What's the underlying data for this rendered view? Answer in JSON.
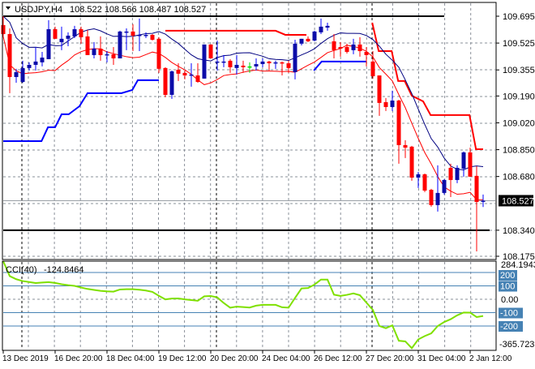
{
  "header": {
    "symbol": "USDJPY,H4",
    "ohlc_text": "108.522 108.566 108.487 108.527",
    "menu_icon": "triangle-down-icon"
  },
  "chart_data": [
    {
      "type": "candlestick",
      "symbol": "USDJPY",
      "timeframe": "H4",
      "ylim": [
        108.175,
        109.695
      ],
      "grid": true,
      "y_ticks": [
        "109.695",
        "109.525",
        "109.355",
        "109.190",
        "109.020",
        "108.850",
        "108.680",
        "108.340",
        "108.175"
      ],
      "current_price": "108.527",
      "colors": {
        "bull": "#0c0ca8",
        "bear": "#ff0000",
        "doji": "#00dd00",
        "upper_ma": "#000080",
        "lower_ma": "#ff0000",
        "upper_step": "#ff0000",
        "lower_step": "#0000ff"
      },
      "x_ticks": [
        "13 Dec 2019",
        "16 Dec 20:00",
        "18 Dec 04:00",
        "19 Dec 12:00",
        "20 Dec 20:00",
        "24 Dec 04:00",
        "26 Dec 12:00",
        "27 Dec 20:00",
        "31 Dec 04:00",
        "2 Jan 12:00"
      ],
      "candles": [
        [
          109.639,
          109.695,
          109.567,
          109.582
        ],
        [
          109.582,
          109.618,
          109.208,
          109.31
        ],
        [
          109.31,
          109.362,
          109.274,
          109.341
        ],
        [
          109.279,
          109.413,
          109.274,
          109.367
        ],
        [
          109.367,
          109.403,
          109.351,
          109.387
        ],
        [
          109.387,
          109.5,
          109.351,
          109.408
        ],
        [
          109.403,
          109.469,
          109.377,
          109.433
        ],
        [
          109.423,
          109.67,
          109.423,
          109.613
        ],
        [
          109.613,
          109.629,
          109.552,
          109.552
        ],
        [
          109.531,
          109.629,
          109.48,
          109.552
        ],
        [
          109.552,
          109.593,
          109.505,
          109.572
        ],
        [
          109.567,
          109.634,
          109.557,
          109.613
        ],
        [
          109.613,
          109.629,
          109.521,
          109.562
        ],
        [
          109.567,
          109.608,
          109.449,
          109.449
        ],
        [
          109.449,
          109.531,
          109.428,
          109.49
        ],
        [
          109.49,
          109.567,
          109.413,
          109.449
        ],
        [
          109.449,
          109.474,
          109.403,
          109.454
        ],
        [
          109.454,
          109.5,
          109.387,
          109.428
        ],
        [
          109.428,
          109.603,
          109.428,
          109.598
        ],
        [
          109.593,
          109.618,
          109.48,
          109.598
        ],
        [
          109.598,
          109.644,
          109.474,
          109.572
        ],
        [
          109.572,
          109.68,
          109.474,
          109.577
        ],
        [
          109.572,
          109.593,
          109.557,
          109.577
        ],
        [
          109.577,
          109.582,
          109.541,
          109.546
        ],
        [
          109.552,
          109.562,
          109.336,
          109.362
        ],
        [
          109.367,
          109.372,
          109.182,
          109.197
        ],
        [
          109.197,
          109.351,
          109.172,
          109.346
        ],
        [
          109.356,
          109.397,
          109.285,
          109.331
        ],
        [
          109.336,
          109.351,
          109.295,
          109.32
        ],
        [
          109.32,
          109.397,
          109.249,
          109.326
        ],
        [
          109.32,
          109.397,
          109.274,
          109.279
        ],
        [
          109.3,
          109.516,
          109.3,
          109.516
        ],
        [
          109.516,
          109.516,
          109.428,
          109.428
        ],
        [
          109.403,
          109.541,
          109.351,
          109.408
        ],
        [
          109.403,
          109.449,
          109.372,
          109.408
        ],
        [
          109.413,
          109.423,
          109.336,
          109.372
        ],
        [
          109.367,
          109.449,
          109.326,
          109.387
        ],
        [
          109.382,
          109.413,
          109.336,
          109.372
        ],
        [
          109.377,
          109.403,
          109.336,
          109.377
        ],
        [
          109.377,
          109.428,
          109.351,
          109.392
        ],
        [
          109.392,
          109.428,
          109.372,
          109.408
        ],
        [
          109.408,
          109.413,
          109.351,
          109.397
        ],
        [
          109.397,
          109.413,
          109.362,
          109.403
        ],
        [
          109.403,
          109.408,
          109.32,
          109.397
        ],
        [
          109.397,
          109.413,
          109.336,
          109.367
        ],
        [
          109.341,
          109.546,
          109.295,
          109.521
        ],
        [
          109.521,
          109.552,
          109.51,
          109.552
        ],
        [
          109.552,
          109.567,
          109.531,
          109.536
        ],
        [
          109.541,
          109.603,
          109.536,
          109.598
        ],
        [
          109.593,
          109.68,
          109.582,
          109.629
        ],
        [
          109.623,
          109.654,
          109.603,
          109.634
        ],
        [
          109.536,
          109.582,
          109.428,
          109.48
        ],
        [
          109.5,
          109.531,
          109.439,
          109.49
        ],
        [
          109.5,
          109.521,
          109.459,
          109.469
        ],
        [
          109.48,
          109.552,
          109.454,
          109.516
        ],
        [
          109.516,
          109.562,
          109.439,
          109.474
        ],
        [
          109.469,
          109.5,
          109.377,
          109.449
        ],
        [
          109.408,
          109.474,
          109.3,
          109.315
        ],
        [
          109.32,
          109.32,
          109.064,
          109.146
        ],
        [
          109.151,
          109.177,
          109.095,
          109.12
        ],
        [
          109.12,
          109.223,
          109.095,
          109.161
        ],
        [
          109.161,
          109.166,
          108.761,
          108.879
        ],
        [
          108.879,
          108.91,
          108.797,
          108.863
        ],
        [
          108.869,
          108.874,
          108.653,
          108.673
        ],
        [
          108.673,
          108.709,
          108.607,
          108.694
        ],
        [
          108.694,
          108.699,
          108.581,
          108.591
        ],
        [
          108.596,
          108.602,
          108.489,
          108.499
        ],
        [
          108.499,
          108.751,
          108.458,
          108.576
        ],
        [
          108.576,
          108.663,
          108.566,
          108.658
        ],
        [
          108.735,
          108.761,
          108.55,
          108.658
        ],
        [
          108.658,
          108.751,
          108.638,
          108.735
        ],
        [
          108.73,
          108.838,
          108.679,
          108.833
        ],
        [
          108.833,
          108.863,
          108.679,
          108.679
        ],
        [
          108.684,
          108.745,
          108.206,
          108.519
        ],
        [
          108.522,
          108.566,
          108.487,
          108.527
        ]
      ],
      "upper_step_line": [
        [
          [
            25,
            109.603
          ],
          [
            42,
            109.603
          ],
          [
            43.5,
            109.577
          ],
          [
            46.75,
            109.577
          ]
        ],
        [
          [
            56.9,
            109.654
          ],
          [
            57.9,
            109.474
          ],
          [
            59.9,
            109.474
          ],
          [
            60.9,
            109.285
          ],
          [
            61.9,
            109.285
          ],
          [
            63,
            109.192
          ],
          [
            64.75,
            109.156
          ],
          [
            65.9,
            109.069
          ],
          [
            71.9,
            109.069
          ],
          [
            72.9,
            108.853
          ],
          [
            74,
            108.853
          ]
        ]
      ],
      "lower_step_line": [
        [
          [
            0,
            108.904
          ],
          [
            5.9,
            108.904
          ],
          [
            6.9,
            108.992
          ],
          [
            8,
            108.992
          ],
          [
            9,
            109.074
          ],
          [
            10.1,
            109.074
          ],
          [
            11.75,
            109.125
          ],
          [
            13,
            109.208
          ],
          [
            18.25,
            109.208
          ],
          [
            19.9,
            109.228
          ],
          [
            20.75,
            109.29
          ],
          [
            24,
            109.29
          ]
        ],
        [
          [
            47.9,
            109.351
          ],
          [
            49.1,
            109.408
          ],
          [
            56,
            109.408
          ]
        ]
      ],
      "horizontal_lines": [
        {
          "price": 109.695,
          "from": 0,
          "to": 68,
          "color": "#000000"
        },
        {
          "price": 108.34,
          "from": 0,
          "to": 75,
          "color": "#000000"
        }
      ]
    },
    {
      "type": "line",
      "indicator_label": "CCI(40)",
      "current_value_text": "-124.8464",
      "ylim": [
        -365.7239,
        284.1943
      ],
      "max_label": "284.1943",
      "min_label": "-365.7239",
      "levels": [
        {
          "value": 200,
          "label": "200"
        },
        {
          "value": 100,
          "label": "100"
        },
        {
          "value": -100,
          "label": "-100"
        },
        {
          "value": -200,
          "label": "-200"
        }
      ],
      "zero_label": "0.00",
      "color": "#7fe000",
      "level_color": "#4682b4",
      "values": [
        284.19,
        173,
        150,
        136,
        129,
        121,
        125,
        128,
        122,
        112,
        105,
        100,
        88,
        77,
        70,
        63,
        59,
        57,
        73,
        75,
        75,
        71,
        65,
        55,
        26,
        -1,
        5,
        6,
        -1,
        -6,
        -11,
        22,
        24,
        14,
        -28,
        -63,
        -55,
        -58,
        -62,
        -48,
        -42,
        -42,
        -42,
        -60,
        -63,
        10,
        81,
        84,
        110,
        147,
        147,
        34,
        25,
        33,
        44,
        30,
        -25,
        -80,
        -200,
        -216,
        -195,
        -310,
        -315,
        -365.72,
        -300,
        -275,
        -255,
        -200,
        -170,
        -149,
        -120,
        -99,
        -100,
        -133,
        -124.85
      ]
    }
  ]
}
